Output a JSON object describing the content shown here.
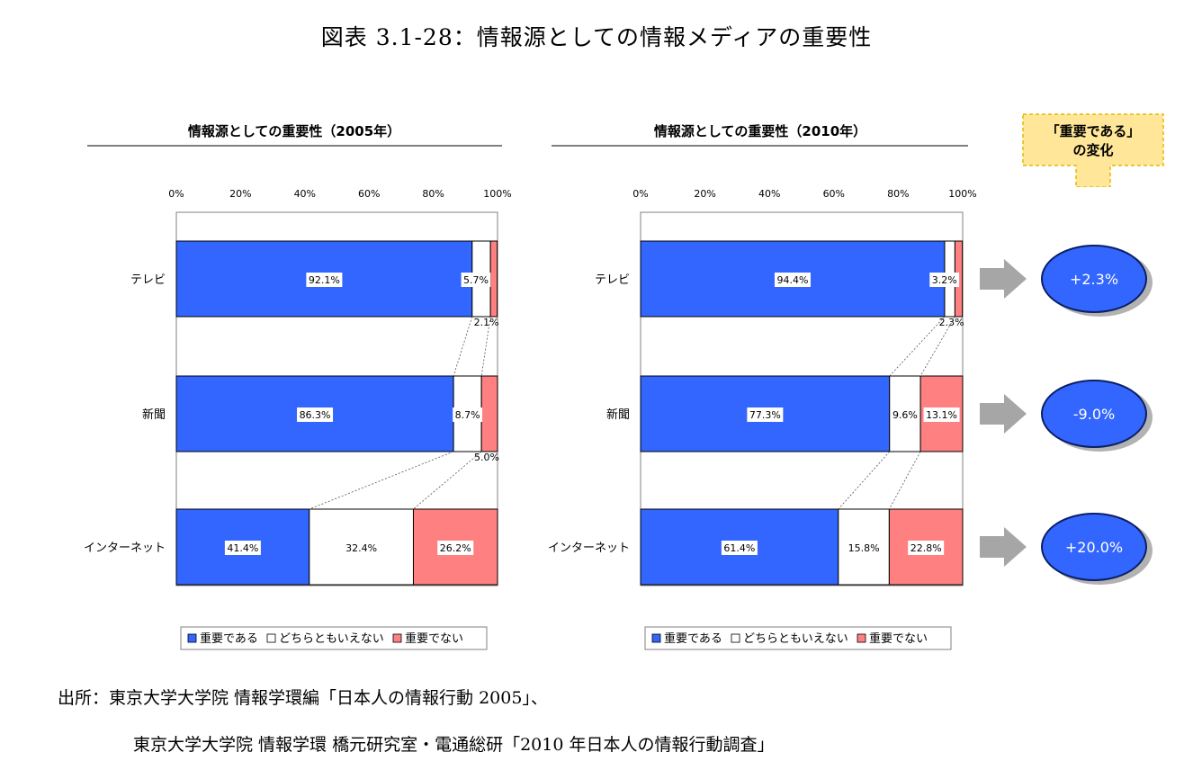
{
  "figure_title": "図表 3.1-28：情報源としての情報メディアの重要性",
  "chart_data": [
    {
      "type": "bar",
      "orientation": "horizontal",
      "stacked": true,
      "title": "情報源としての重要性（2005年）",
      "categories": [
        "テレビ",
        "新聞",
        "インターネット"
      ],
      "series": [
        {
          "name": "重要である",
          "color": "#3366FF",
          "values": [
            92.1,
            86.3,
            41.4
          ]
        },
        {
          "name": "どちらともいえない",
          "color": "#FFFFFF",
          "values": [
            5.7,
            8.7,
            32.4
          ]
        },
        {
          "name": "重要でない",
          "color": "#FF8080",
          "values": [
            2.1,
            5.0,
            26.2
          ]
        }
      ],
      "value_labels": [
        [
          "92.1%",
          "5.7%",
          "2.1%"
        ],
        [
          "86.3%",
          "8.7%",
          "5.0%"
        ],
        [
          "41.4%",
          "32.4%",
          "26.2%"
        ]
      ],
      "xlim": [
        0,
        100
      ],
      "x_ticks": [
        "0%",
        "20%",
        "40%",
        "60%",
        "80%",
        "100%"
      ],
      "xlabel": "",
      "ylabel": "",
      "legend": "bottom",
      "grid": false
    },
    {
      "type": "bar",
      "orientation": "horizontal",
      "stacked": true,
      "title": "情報源としての重要性（2010年）",
      "categories": [
        "テレビ",
        "新聞",
        "インターネット"
      ],
      "series": [
        {
          "name": "重要である",
          "color": "#3366FF",
          "values": [
            94.4,
            77.3,
            61.4
          ]
        },
        {
          "name": "どちらともいえない",
          "color": "#FFFFFF",
          "values": [
            3.2,
            9.6,
            15.8
          ]
        },
        {
          "name": "重要でない",
          "color": "#FF8080",
          "values": [
            2.3,
            13.1,
            22.8
          ]
        }
      ],
      "value_labels": [
        [
          "94.4%",
          "3.2%",
          "2.3%"
        ],
        [
          "77.3%",
          "9.6%",
          "13.1%"
        ],
        [
          "61.4%",
          "15.8%",
          "22.8%"
        ]
      ],
      "xlim": [
        0,
        100
      ],
      "x_ticks": [
        "0%",
        "20%",
        "40%",
        "60%",
        "80%",
        "100%"
      ],
      "xlabel": "",
      "ylabel": "",
      "legend": "bottom",
      "grid": false
    }
  ],
  "change_panel": {
    "header_line1": "「重要である」",
    "header_line2": "の変化",
    "values": [
      "+2.3%",
      "-9.0%",
      "+20.0%"
    ],
    "circle_color": "#3366FF",
    "callout_color": "#FFE699",
    "arrow_color": "#A6A6A6"
  },
  "source": {
    "line1": "出所：東京大学大学院 情報学環編「日本人の情報行動 2005」、",
    "line2": "東京大学大学院 情報学環 橋元研究室・電通総研「2010 年日本人の情報行動調査」"
  }
}
